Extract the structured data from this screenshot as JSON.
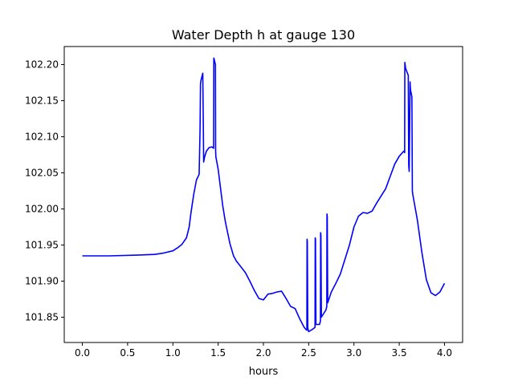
{
  "chart_data": {
    "type": "line",
    "title": "Water Depth h at gauge 130",
    "xlabel": "hours",
    "ylabel": "",
    "xlim": [
      -0.2,
      4.2
    ],
    "ylim": [
      101.815,
      102.225
    ],
    "xticks": [
      0.0,
      0.5,
      1.0,
      1.5,
      2.0,
      2.5,
      3.0,
      3.5,
      4.0
    ],
    "xtick_labels": [
      "0.0",
      "0.5",
      "1.0",
      "1.5",
      "2.0",
      "2.5",
      "3.0",
      "3.5",
      "4.0"
    ],
    "yticks": [
      101.85,
      101.9,
      101.95,
      102.0,
      102.05,
      102.1,
      102.15,
      102.2
    ],
    "ytick_labels": [
      "101.85",
      "101.90",
      "101.95",
      "102.00",
      "102.05",
      "102.10",
      "102.15",
      "102.20"
    ],
    "grid": false,
    "series": [
      {
        "color": "#0000ff",
        "x": [
          0.0,
          0.3,
          0.6,
          0.8,
          0.9,
          1.0,
          1.05,
          1.1,
          1.15,
          1.18,
          1.2,
          1.23,
          1.26,
          1.29,
          1.3,
          1.305,
          1.31,
          1.32,
          1.33,
          1.335,
          1.34,
          1.35,
          1.37,
          1.4,
          1.43,
          1.45,
          1.452,
          1.455,
          1.46,
          1.47,
          1.472,
          1.475,
          1.5,
          1.52,
          1.55,
          1.58,
          1.6,
          1.63,
          1.67,
          1.7,
          1.75,
          1.8,
          1.85,
          1.9,
          1.95,
          2.0,
          2.05,
          2.1,
          2.15,
          2.2,
          2.25,
          2.3,
          2.35,
          2.4,
          2.45,
          2.47,
          2.48,
          2.482,
          2.485,
          2.49,
          2.5,
          2.55,
          2.57,
          2.572,
          2.575,
          2.58,
          2.62,
          2.63,
          2.632,
          2.635,
          2.64,
          2.69,
          2.7,
          2.702,
          2.705,
          2.71,
          2.75,
          2.8,
          2.85,
          2.9,
          2.95,
          3.0,
          3.05,
          3.1,
          3.15,
          3.2,
          3.25,
          3.3,
          3.35,
          3.4,
          3.45,
          3.5,
          3.55,
          3.56,
          3.562,
          3.565,
          3.57,
          3.6,
          3.605,
          3.61,
          3.62,
          3.622,
          3.625,
          3.64,
          3.645,
          3.65,
          3.7,
          3.75,
          3.8,
          3.85,
          3.9,
          3.95,
          4.0
        ],
        "y": [
          101.935,
          101.935,
          101.936,
          101.937,
          101.939,
          101.942,
          101.946,
          101.951,
          101.96,
          101.975,
          101.995,
          102.02,
          102.04,
          102.048,
          102.11,
          102.173,
          102.178,
          102.183,
          102.188,
          102.13,
          102.065,
          102.072,
          102.08,
          102.085,
          102.086,
          102.084,
          102.209,
          102.208,
          102.205,
          102.2,
          102.08,
          102.072,
          102.055,
          102.035,
          102.005,
          101.982,
          101.97,
          101.952,
          101.935,
          101.928,
          101.92,
          101.912,
          101.9,
          101.887,
          101.876,
          101.874,
          101.882,
          101.883,
          101.885,
          101.886,
          101.876,
          101.865,
          101.862,
          101.848,
          101.836,
          101.833,
          101.832,
          101.958,
          101.955,
          101.835,
          101.83,
          101.834,
          101.836,
          101.96,
          101.958,
          101.84,
          101.84,
          101.845,
          101.967,
          101.963,
          101.85,
          101.86,
          101.865,
          101.993,
          101.99,
          101.87,
          101.885,
          101.897,
          101.91,
          101.93,
          101.95,
          101.975,
          101.99,
          101.995,
          101.994,
          101.997,
          102.008,
          102.018,
          102.028,
          102.045,
          102.062,
          102.073,
          102.08,
          102.078,
          102.203,
          102.2,
          102.195,
          102.185,
          102.06,
          102.052,
          102.176,
          102.17,
          102.165,
          102.155,
          102.025,
          102.02,
          101.985,
          101.94,
          101.902,
          101.884,
          101.88,
          101.885,
          101.897
        ]
      }
    ]
  }
}
